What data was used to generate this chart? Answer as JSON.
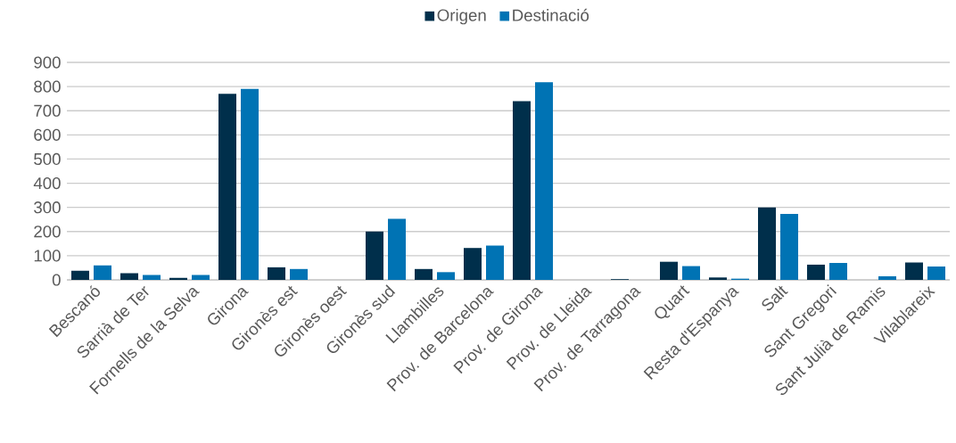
{
  "chart_data": {
    "type": "bar",
    "categories": [
      "Bescanó",
      "Sarrià de Ter",
      "Fornells de la Selva",
      "Girona",
      "Gironès est",
      "Gironès oest",
      "Gironès sud",
      "Llambilles",
      "Prov. de Barcelona",
      "Prov. de Girona",
      "Prov. de Lleida",
      "Prov. de Tarragona",
      "Quart",
      "Resta d'Espanya",
      "Salt",
      "Sant Gregori",
      "Sant Julià de Ramis",
      "Vilablareix"
    ],
    "series": [
      {
        "name": "Origen",
        "color": "#002f4b",
        "values": [
          38,
          28,
          8,
          770,
          52,
          0,
          200,
          45,
          132,
          740,
          0,
          3,
          75,
          10,
          300,
          63,
          0,
          72
        ]
      },
      {
        "name": "Destinació",
        "color": "#0073b4",
        "values": [
          60,
          20,
          20,
          790,
          45,
          0,
          253,
          32,
          142,
          818,
          0,
          0,
          57,
          5,
          273,
          70,
          15,
          55
        ]
      }
    ],
    "ylim": [
      0,
      900
    ],
    "yticks": [
      0,
      100,
      200,
      300,
      400,
      500,
      600,
      700,
      800,
      900
    ],
    "grid": "y",
    "legend": "top"
  }
}
